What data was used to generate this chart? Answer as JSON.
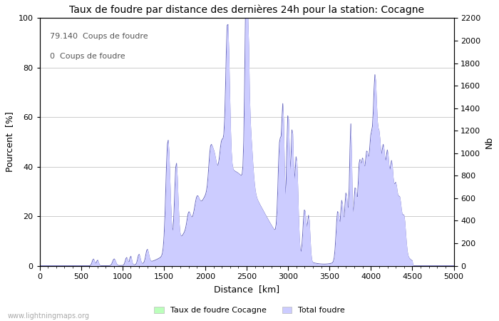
{
  "title": "Taux de foudre par distance des dernières 24h pour la station: Cocagne",
  "xlabel": "Distance  [km]",
  "ylabel_left": "Pourcent  [%]",
  "ylabel_right": "Nb",
  "annotation_lines": [
    "79.140  Coups de foudre",
    "0  Coups de foudre"
  ],
  "xlim": [
    0,
    5000
  ],
  "ylim_left": [
    0,
    100
  ],
  "ylim_right": [
    0,
    2200
  ],
  "xticks": [
    0,
    500,
    1000,
    1500,
    2000,
    2500,
    3000,
    3500,
    4000,
    4500,
    5000
  ],
  "yticks_left": [
    0,
    20,
    40,
    60,
    80,
    100
  ],
  "yticks_right": [
    0,
    200,
    400,
    600,
    800,
    1000,
    1200,
    1400,
    1600,
    1800,
    2000,
    2200
  ],
  "legend_label_green": "Taux de foudre Cocagne",
  "legend_label_blue": "Total foudre",
  "fill_color_total": "#ccccff",
  "fill_color_rate": "#bbffbb",
  "line_color": "#6666bb",
  "watermark": "www.lightningmaps.org",
  "background_color": "#ffffff",
  "grid_color": "#cccccc"
}
